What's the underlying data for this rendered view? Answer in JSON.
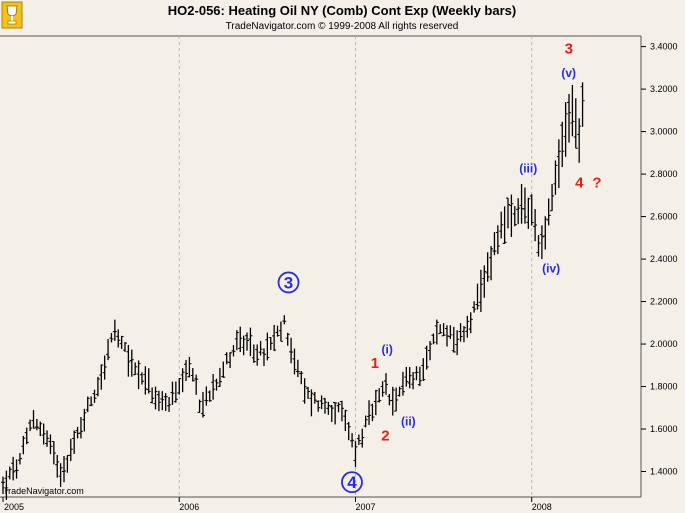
{
  "header": {
    "title": "HO2-056:  Heating Oil NY (Comb) Cont Exp  (Weekly bars)",
    "subtitle": "TradeNavigator.com © 1999-2008 All rights reserved"
  },
  "watermark": "TradeNavigator.com",
  "colors": {
    "background": "#f4f0e8",
    "bars": "#000000",
    "wave_red": "#e0201c",
    "wave_blue": "#2a2ae0",
    "grid": "#b8b8b8",
    "logo_yellow": "#f2c21b"
  },
  "icons": [
    "trophy-logo-icon"
  ],
  "chart_data": {
    "type": "ohlc",
    "title": "HO2-056:  Heating Oil NY (Comb) Cont Exp  (Weekly bars)",
    "xlabel": "",
    "ylabel": "",
    "x_ticks": [
      2005,
      2006,
      2007,
      2008
    ],
    "x_range": [
      2005.0,
      2008.62
    ],
    "y_ticks": [
      "1.4000",
      "1.6000",
      "1.8000",
      "2.0000",
      "2.2000",
      "2.4000",
      "2.6000",
      "2.8000",
      "3.0000",
      "3.2000",
      "3.4000"
    ],
    "y_range": [
      1.28,
      3.45
    ],
    "grid": "vertical dashed at year boundaries",
    "key_points": [
      [
        2005.0,
        1.33
      ],
      [
        2005.1,
        1.45
      ],
      [
        2005.17,
        1.66
      ],
      [
        2005.25,
        1.55
      ],
      [
        2005.33,
        1.4
      ],
      [
        2005.4,
        1.52
      ],
      [
        2005.48,
        1.7
      ],
      [
        2005.55,
        1.83
      ],
      [
        2005.63,
        2.06
      ],
      [
        2005.68,
        1.98
      ],
      [
        2005.75,
        1.88
      ],
      [
        2005.8,
        1.85
      ],
      [
        2005.87,
        1.73
      ],
      [
        2005.93,
        1.72
      ],
      [
        2006.0,
        1.78
      ],
      [
        2006.07,
        1.9
      ],
      [
        2006.12,
        1.69
      ],
      [
        2006.2,
        1.82
      ],
      [
        2006.28,
        1.93
      ],
      [
        2006.33,
        2.02
      ],
      [
        2006.4,
        1.98
      ],
      [
        2006.48,
        1.95
      ],
      [
        2006.55,
        2.03
      ],
      [
        2006.6,
        2.1
      ],
      [
        2006.65,
        1.93
      ],
      [
        2006.72,
        1.76
      ],
      [
        2006.8,
        1.72
      ],
      [
        2006.87,
        1.7
      ],
      [
        2006.93,
        1.66
      ],
      [
        2007.0,
        1.5
      ],
      [
        2007.07,
        1.64
      ],
      [
        2007.13,
        1.73
      ],
      [
        2007.17,
        1.8
      ],
      [
        2007.22,
        1.69
      ],
      [
        2007.28,
        1.86
      ],
      [
        2007.33,
        1.82
      ],
      [
        2007.4,
        1.93
      ],
      [
        2007.47,
        2.07
      ],
      [
        2007.53,
        2.06
      ],
      [
        2007.58,
        2.01
      ],
      [
        2007.65,
        2.11
      ],
      [
        2007.72,
        2.25
      ],
      [
        2007.78,
        2.45
      ],
      [
        2007.85,
        2.6
      ],
      [
        2007.9,
        2.58
      ],
      [
        2007.95,
        2.65
      ],
      [
        2008.0,
        2.62
      ],
      [
        2008.05,
        2.45
      ],
      [
        2008.1,
        2.62
      ],
      [
        2008.15,
        2.82
      ],
      [
        2008.2,
        3.05
      ],
      [
        2008.24,
        3.1
      ],
      [
        2008.27,
        2.95
      ],
      [
        2008.3,
        3.22
      ]
    ],
    "annotations": [
      {
        "text": "3",
        "style": "circled",
        "color": "blue",
        "x": 2006.62,
        "y": 2.29
      },
      {
        "text": "4",
        "style": "circled",
        "color": "blue",
        "x": 2006.98,
        "y": 1.35
      },
      {
        "text": "1",
        "style": "plain",
        "color": "red",
        "x": 2007.11,
        "y": 1.91
      },
      {
        "text": "2",
        "style": "plain",
        "color": "red",
        "x": 2007.17,
        "y": 1.57
      },
      {
        "text": "(i)",
        "style": "plain",
        "color": "blue",
        "x": 2007.18,
        "y": 1.98
      },
      {
        "text": "(ii)",
        "style": "plain",
        "color": "blue",
        "x": 2007.3,
        "y": 1.64
      },
      {
        "text": "(iii)",
        "style": "plain",
        "color": "blue",
        "x": 2007.98,
        "y": 2.83
      },
      {
        "text": "(iv)",
        "style": "plain",
        "color": "blue",
        "x": 2008.11,
        "y": 2.36
      },
      {
        "text": "3",
        "style": "plain",
        "color": "red",
        "x": 2008.21,
        "y": 3.39
      },
      {
        "text": "(v)",
        "style": "plain",
        "color": "blue",
        "x": 2008.21,
        "y": 3.28
      },
      {
        "text": "4",
        "style": "plain",
        "color": "red",
        "x": 2008.27,
        "y": 2.76
      },
      {
        "text": "?",
        "style": "plain",
        "color": "red",
        "x": 2008.37,
        "y": 2.76
      }
    ]
  }
}
